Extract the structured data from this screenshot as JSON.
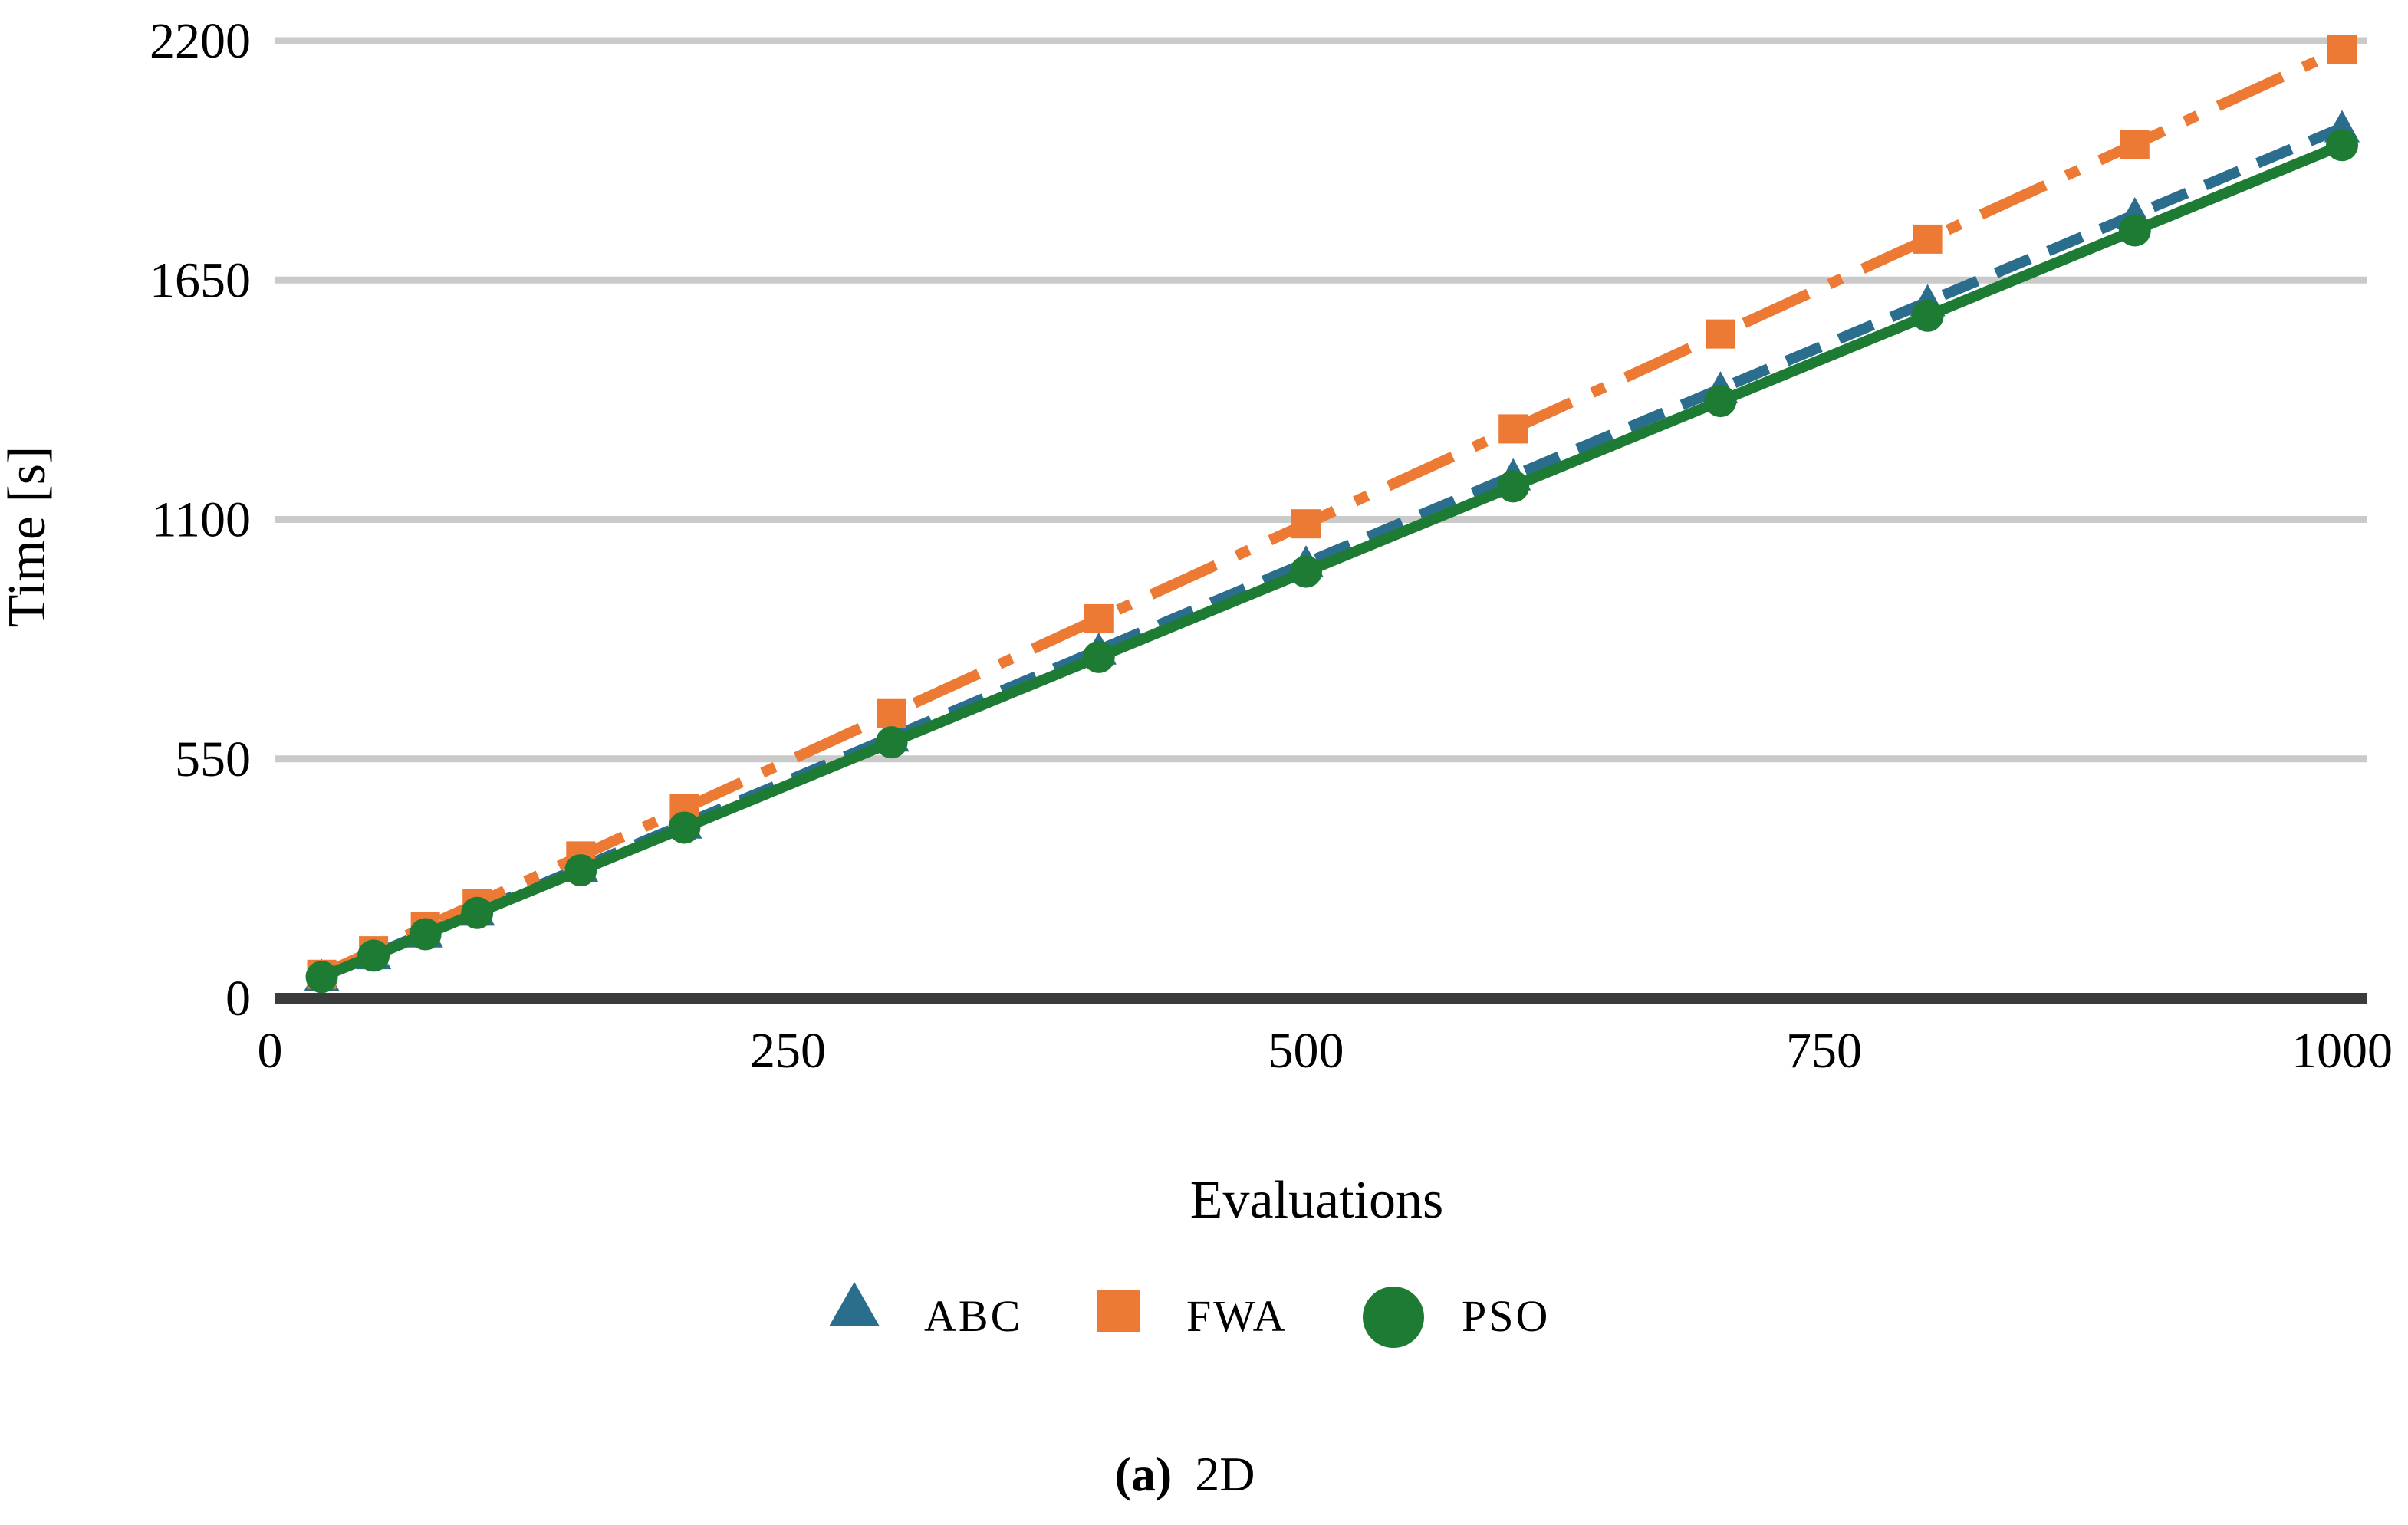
{
  "figure": {
    "background": "#ffffff",
    "caption": {
      "prefix": "(a)",
      "label": "2D"
    }
  },
  "chart_data": {
    "type": "line",
    "title": "",
    "xlabel": "Evaluations",
    "ylabel": "Time [s]",
    "xlim": [
      0,
      1000
    ],
    "ylim": [
      0,
      2200
    ],
    "x_ticks": [
      0,
      250,
      500,
      750,
      1000
    ],
    "y_ticks": [
      0,
      550,
      1100,
      1650,
      2200
    ],
    "grid": "horizontal-only",
    "legend": {
      "position": "bottom-center",
      "entries": [
        "ABC",
        "FWA",
        "PSO"
      ]
    },
    "x": [
      25,
      50,
      75,
      100,
      150,
      200,
      300,
      400,
      500,
      600,
      700,
      800,
      900,
      1000
    ],
    "series": [
      {
        "name": "ABC",
        "color": "#2b6d8d",
        "marker": "triangle",
        "line_style": "dashed",
        "values": [
          50,
          100,
          150,
          200,
          300,
          400,
          600,
          800,
          1000,
          1200,
          1400,
          1600,
          1800,
          2000
        ]
      },
      {
        "name": "FWA",
        "color": "#ec7a34",
        "marker": "square",
        "line_style": "dash-dot",
        "values": [
          55,
          109,
          164,
          218,
          327,
          436,
          654,
          872,
          1090,
          1308,
          1526,
          1744,
          1962,
          2180
        ]
      },
      {
        "name": "PSO",
        "color": "#1e7b33",
        "marker": "circle",
        "line_style": "solid",
        "values": [
          49,
          98,
          147,
          196,
          294,
          392,
          588,
          784,
          980,
          1176,
          1372,
          1568,
          1764,
          1960
        ]
      }
    ]
  },
  "style": {
    "gridline_color": "#cacaca",
    "axis_color": "#3b3b3b",
    "text_color": "#000000"
  }
}
